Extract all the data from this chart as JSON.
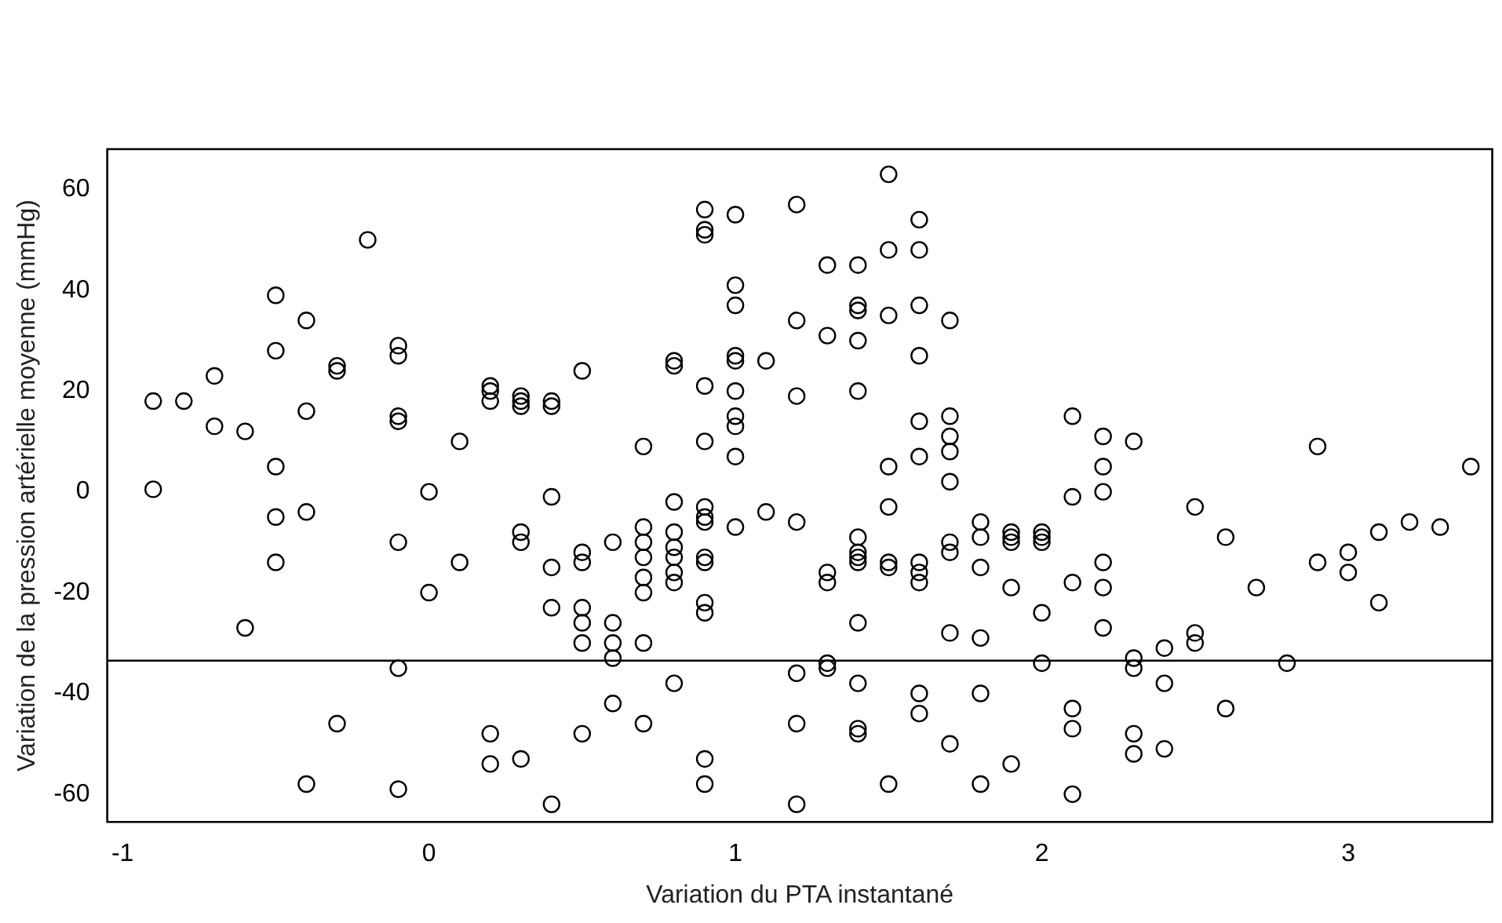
{
  "chart_data": {
    "type": "scatter",
    "xlabel": "Variation du PTA instantané",
    "ylabel": "Variation de la pression artérielle moyenne (mmHg)",
    "xlim": [
      -1.05,
      3.47
    ],
    "ylim": [
      -65.5,
      68
    ],
    "xticks": [
      -1,
      0,
      1,
      2,
      3
    ],
    "yticks": [
      -60,
      -40,
      -20,
      0,
      20,
      40,
      60
    ],
    "grid": false,
    "legend": false,
    "marker": "circle",
    "ref_lines": [
      {
        "axis": "y",
        "value": -33.5,
        "color": "#000000"
      }
    ],
    "series": [
      {
        "color": "#000000",
        "x": [
          -0.9,
          -0.9,
          -0.8,
          -0.7,
          -0.7,
          -0.6,
          -0.6,
          -0.5,
          -0.5,
          -0.5,
          -0.5,
          -0.5,
          -0.4,
          -0.4,
          -0.4,
          -0.4,
          -0.3,
          -0.3,
          -0.3,
          -0.2,
          -0.1,
          -0.1,
          -0.1,
          -0.1,
          -0.1,
          -0.1,
          -0.1,
          0,
          0,
          0.1,
          0.1,
          0.2,
          0.2,
          0.2,
          0.2,
          0.2,
          0.3,
          0.3,
          0.3,
          0.3,
          0.3,
          0.3,
          0.4,
          0.4,
          0.4,
          0.4,
          0.4,
          0.4,
          0.5,
          0.5,
          0.5,
          0.5,
          0.5,
          0.5,
          0.5,
          0.6,
          0.6,
          0.6,
          0.6,
          0.6,
          0.7,
          0.7,
          0.7,
          0.7,
          0.7,
          0.7,
          0.7,
          0.7,
          0.8,
          0.8,
          0.8,
          0.8,
          0.8,
          0.8,
          0.8,
          0.8,
          0.8,
          0.9,
          0.9,
          0.9,
          0.9,
          0.9,
          0.9,
          0.9,
          0.9,
          0.9,
          0.9,
          0.9,
          0.9,
          0.9,
          0.9,
          1,
          1,
          1,
          1,
          1,
          1,
          1,
          1,
          1,
          1,
          1.1,
          1.1,
          1.2,
          1.2,
          1.2,
          1.2,
          1.2,
          1.2,
          1.2,
          1.3,
          1.3,
          1.3,
          1.3,
          1.3,
          1.3,
          1.4,
          1.4,
          1.4,
          1.4,
          1.4,
          1.4,
          1.4,
          1.4,
          1.4,
          1.4,
          1.4,
          1.4,
          1.4,
          1.5,
          1.5,
          1.5,
          1.5,
          1.5,
          1.5,
          1.5,
          1.5,
          1.6,
          1.6,
          1.6,
          1.6,
          1.6,
          1.6,
          1.6,
          1.6,
          1.6,
          1.6,
          1.6,
          1.7,
          1.7,
          1.7,
          1.7,
          1.7,
          1.7,
          1.7,
          1.7,
          1.7,
          1.8,
          1.8,
          1.8,
          1.8,
          1.8,
          1.8,
          1.9,
          1.9,
          1.9,
          1.9,
          1.9,
          2,
          2,
          2,
          2,
          2,
          2.1,
          2.1,
          2.1,
          2.1,
          2.1,
          2.1,
          2.2,
          2.2,
          2.2,
          2.2,
          2.2,
          2.2,
          2.3,
          2.3,
          2.3,
          2.3,
          2.3,
          2.4,
          2.4,
          2.4,
          2.5,
          2.5,
          2.5,
          2.6,
          2.6,
          2.7,
          2.8,
          2.9,
          2.9,
          3,
          3,
          3.1,
          3.1,
          3.2,
          3.3,
          3.4
        ],
        "values": [
          18,
          0.5,
          18,
          23,
          13,
          12,
          -27,
          39,
          28,
          5,
          -5,
          -14,
          34,
          16,
          -4,
          -58,
          25,
          24,
          -46,
          50,
          29,
          27,
          15,
          14,
          -10,
          -35,
          -59,
          0,
          -20,
          10,
          -14,
          21,
          20,
          18,
          -48,
          -54,
          19,
          18,
          17,
          -8,
          -10,
          -53,
          18,
          17,
          -1,
          -15,
          -23,
          -62,
          24,
          -12,
          -14,
          -23,
          -26,
          -30,
          -48,
          -10,
          -26,
          -30,
          -33,
          -42,
          9,
          -7,
          -10,
          -13,
          -17,
          -20,
          -30,
          -46,
          26,
          25,
          -2,
          -8,
          -11,
          -13,
          -16,
          -18,
          -38,
          56,
          52,
          51,
          21,
          10,
          -3,
          -5,
          -6,
          -13,
          -14,
          -22,
          -24,
          -53,
          -58,
          55,
          41,
          37,
          27,
          26,
          20,
          15,
          13,
          7,
          -7,
          26,
          -4,
          57,
          34,
          19,
          -6,
          -36,
          -46,
          -62,
          45,
          31,
          -16,
          -18,
          -34,
          -35,
          45,
          37,
          36,
          30,
          20,
          -9,
          -12,
          -13,
          -14,
          -26,
          -38,
          -47,
          -48,
          63,
          48,
          35,
          5,
          -3,
          -14,
          -15,
          -58,
          54,
          48,
          37,
          27,
          14,
          7,
          -14,
          -16,
          -18,
          -40,
          -44,
          34,
          15,
          11,
          8,
          2,
          -10,
          -12,
          -28,
          -50,
          -6,
          -9,
          -15,
          -29,
          -40,
          -58,
          -8,
          -9,
          -10,
          -19,
          -54,
          -8,
          -9,
          -10,
          -24,
          -34,
          15,
          -1,
          -18,
          -43,
          -47,
          -60,
          11,
          5,
          0,
          -14,
          -19,
          -27,
          10,
          -33,
          -35,
          -48,
          -52,
          -31,
          -38,
          -51,
          -3,
          -28,
          -30,
          -9,
          -43,
          -19,
          -34,
          9,
          -14,
          -12,
          -16,
          -8,
          -22,
          -6,
          -7,
          5
        ]
      }
    ]
  }
}
